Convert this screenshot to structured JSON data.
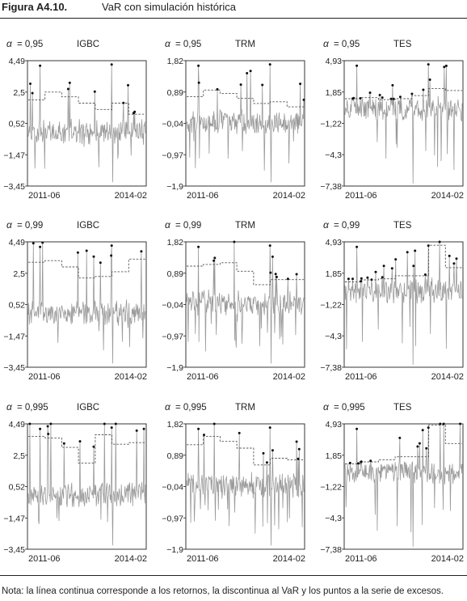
{
  "figure": {
    "number": "Figura A4.10.",
    "title": "VaR con simulación histórica",
    "note": "Nota: la línea continua corresponde a los retornos, la discontinua al VaR y los puntos a la serie de excesos."
  },
  "colors": {
    "returns": "#9a9a9a",
    "var": "#555555",
    "exceed": "#111111",
    "axis": "#231f20"
  },
  "chart_data": [
    {
      "type": "line",
      "alpha_symbol": "α",
      "alpha_value": "= 0,95",
      "series_label": "IGBC",
      "yticks": [
        "4,49",
        "2,5",
        "0,52",
        "−1,47",
        "−3,45"
      ],
      "ytick_values": [
        4.49,
        2.5,
        0.52,
        -1.47,
        -3.45
      ],
      "ylim": [
        -3.45,
        4.49
      ],
      "x_labels": [
        "2011-06",
        "2014-02"
      ],
      "var_level": [
        2.0,
        2.5,
        2.2,
        1.8,
        1.4,
        1.8,
        1.1
      ],
      "series": [
        {
          "name": "retornos"
        },
        {
          "name": "VaR"
        },
        {
          "name": "excesos"
        }
      ]
    },
    {
      "type": "line",
      "alpha_symbol": "α",
      "alpha_value": "= 0,95",
      "series_label": "TRM",
      "yticks": [
        "1,82",
        "0,89",
        "−0,04",
        "−0,97",
        "−1,9"
      ],
      "ytick_values": [
        1.82,
        0.89,
        -0.04,
        -0.97,
        -1.9
      ],
      "ylim": [
        -1.9,
        1.82
      ],
      "x_labels": [
        "2011-06",
        "2014-02"
      ],
      "var_level": [
        0.75,
        0.95,
        0.85,
        0.7,
        0.55,
        0.6,
        0.45
      ],
      "series": [
        {
          "name": "retornos"
        },
        {
          "name": "VaR"
        },
        {
          "name": "excesos"
        }
      ]
    },
    {
      "type": "line",
      "alpha_symbol": "α",
      "alpha_value": "= 0,95",
      "series_label": "TES",
      "yticks": [
        "4,93",
        "1,85",
        "−1,22",
        "−4,3",
        "−7,38"
      ],
      "ytick_values": [
        4.93,
        1.85,
        -1.22,
        -4.3,
        -7.38
      ],
      "ylim": [
        -7.38,
        4.93
      ],
      "x_labels": [
        "2011-06",
        "2014-02"
      ],
      "var_level": [
        1.2,
        1.3,
        1.1,
        1.2,
        1.5,
        2.2,
        2.0
      ],
      "series": [
        {
          "name": "retornos"
        },
        {
          "name": "VaR"
        },
        {
          "name": "excesos"
        }
      ]
    },
    {
      "type": "line",
      "alpha_symbol": "α",
      "alpha_value": "= 0,99",
      "series_label": "IGBC",
      "yticks": [
        "4,49",
        "2,5",
        "0,52",
        "−1,47",
        "−3,45"
      ],
      "ytick_values": [
        4.49,
        2.5,
        0.52,
        -1.47,
        -3.45
      ],
      "ylim": [
        -3.45,
        4.49
      ],
      "x_labels": [
        "2011-06",
        "2014-02"
      ],
      "var_level": [
        3.2,
        3.3,
        2.9,
        2.2,
        2.3,
        2.6,
        3.4
      ],
      "series": [
        {
          "name": "retornos"
        },
        {
          "name": "VaR"
        },
        {
          "name": "excesos"
        }
      ]
    },
    {
      "type": "line",
      "alpha_symbol": "α",
      "alpha_value": "= 0,99",
      "series_label": "TRM",
      "yticks": [
        "1,82",
        "0,89",
        "−0,04",
        "−0,97",
        "−1,9"
      ],
      "ytick_values": [
        1.82,
        0.89,
        -0.04,
        -0.97,
        -1.9
      ],
      "ylim": [
        -1.9,
        1.82
      ],
      "x_labels": [
        "2011-06",
        "2014-02"
      ],
      "var_level": [
        1.1,
        1.15,
        1.2,
        0.95,
        0.55,
        0.7,
        0.7
      ],
      "series": [
        {
          "name": "retornos"
        },
        {
          "name": "VaR"
        },
        {
          "name": "excesos"
        }
      ]
    },
    {
      "type": "line",
      "alpha_symbol": "α",
      "alpha_value": "= 0,99",
      "series_label": "TES",
      "yticks": [
        "4,93",
        "1,85",
        "−1,22",
        "−4,3",
        "−7,38"
      ],
      "ytick_values": [
        4.93,
        1.85,
        -1.22,
        -4.3,
        -7.38
      ],
      "ylim": [
        -7.38,
        4.93
      ],
      "x_labels": [
        "2011-06",
        "2014-02"
      ],
      "var_level": [
        1.0,
        1.2,
        1.3,
        1.6,
        1.6,
        4.6,
        2.4
      ],
      "series": [
        {
          "name": "retornos"
        },
        {
          "name": "VaR"
        },
        {
          "name": "excesos"
        }
      ]
    },
    {
      "type": "line",
      "alpha_symbol": "α",
      "alpha_value": "= 0,995",
      "series_label": "IGBC",
      "yticks": [
        "4,49",
        "2,5",
        "0,52",
        "−1,47",
        "−3,45"
      ],
      "ytick_values": [
        4.49,
        2.5,
        0.52,
        -1.47,
        -3.45
      ],
      "ylim": [
        -3.45,
        4.49
      ],
      "x_labels": [
        "2011-06",
        "2014-02"
      ],
      "var_level": [
        3.7,
        3.6,
        3.0,
        2.0,
        3.8,
        3.2,
        3.3
      ],
      "series": [
        {
          "name": "retornos"
        },
        {
          "name": "VaR"
        },
        {
          "name": "excesos"
        }
      ]
    },
    {
      "type": "line",
      "alpha_symbol": "α",
      "alpha_value": "= 0,995",
      "series_label": "TRM",
      "yticks": [
        "1,82",
        "0,89",
        "−0,04",
        "−0,97",
        "−1,9"
      ],
      "ytick_values": [
        1.82,
        0.89,
        -0.04,
        -0.97,
        -1.9
      ],
      "ylim": [
        -1.9,
        1.82
      ],
      "x_labels": [
        "2011-06",
        "2014-02"
      ],
      "var_level": [
        1.2,
        1.45,
        1.3,
        1.1,
        0.6,
        0.8,
        0.75
      ],
      "series": [
        {
          "name": "retornos"
        },
        {
          "name": "VaR"
        },
        {
          "name": "excesos"
        }
      ]
    },
    {
      "type": "line",
      "alpha_symbol": "α",
      "alpha_value": "= 0,995",
      "series_label": "TES",
      "yticks": [
        "4,93",
        "1,85",
        "−1,22",
        "−4,3",
        "−7,38"
      ],
      "ytick_values": [
        4.93,
        1.85,
        -1.22,
        -4.3,
        -7.38
      ],
      "ylim": [
        -7.38,
        4.93
      ],
      "x_labels": [
        "2011-06",
        "2014-02"
      ],
      "var_level": [
        1.0,
        1.2,
        1.4,
        1.7,
        1.7,
        4.8,
        3.0
      ],
      "series": [
        {
          "name": "retornos"
        },
        {
          "name": "VaR"
        },
        {
          "name": "excesos"
        }
      ]
    }
  ]
}
